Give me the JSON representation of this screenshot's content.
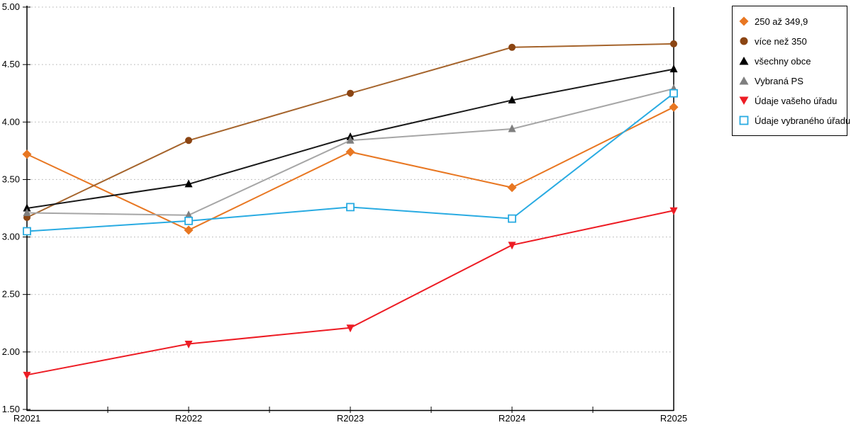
{
  "chart_data": {
    "type": "line",
    "title": "",
    "xlabel": "",
    "ylabel": "",
    "categories": [
      "R2021",
      "R2022",
      "R2023",
      "R2024",
      "R2025"
    ],
    "series": [
      {
        "name": "250 až 349,9",
        "marker": "diamond",
        "line_color": "#E87722",
        "marker_color": "#E87722",
        "values": [
          3.72,
          3.06,
          3.74,
          3.43,
          4.13
        ]
      },
      {
        "name": "více než 350",
        "marker": "circle",
        "line_color": "#A5642C",
        "marker_color": "#8B4513",
        "values": [
          3.17,
          3.84,
          4.25,
          4.65,
          4.68
        ]
      },
      {
        "name": "všechny obce",
        "marker": "triangle-up",
        "line_color": "#1A1A1A",
        "marker_color": "#000000",
        "values": [
          3.25,
          3.46,
          3.87,
          4.19,
          4.46
        ]
      },
      {
        "name": "Vybraná PS",
        "marker": "triangle-up",
        "line_color": "#A6A6A6",
        "marker_color": "#7F7F7F",
        "values": [
          3.21,
          3.19,
          3.84,
          3.94,
          4.29
        ]
      },
      {
        "name": "Údaje vašeho úřadu",
        "marker": "triangle-down",
        "line_color": "#ED1C24",
        "marker_color": "#ED1C24",
        "values": [
          1.8,
          2.07,
          2.21,
          2.93,
          3.23
        ]
      },
      {
        "name": "Údaje vybraného úřadu",
        "marker": "square-open",
        "line_color": "#29ABE2",
        "marker_color": "#29ABE2",
        "values": [
          3.05,
          3.14,
          3.26,
          3.16,
          4.25
        ]
      }
    ],
    "ylim": [
      1.5,
      5.0
    ],
    "ytick_values": [
      1.5,
      2.0,
      2.5,
      3.0,
      3.5,
      4.0,
      4.5,
      5.0
    ],
    "ytick_labels": [
      "1.50",
      "2.00",
      "2.50",
      "3.00",
      "3.50",
      "4.00",
      "4.50",
      "5.00"
    ],
    "grid": true,
    "gridline_color": "#AFAFAF",
    "axis_color": "#000000",
    "legend_position": "right"
  }
}
